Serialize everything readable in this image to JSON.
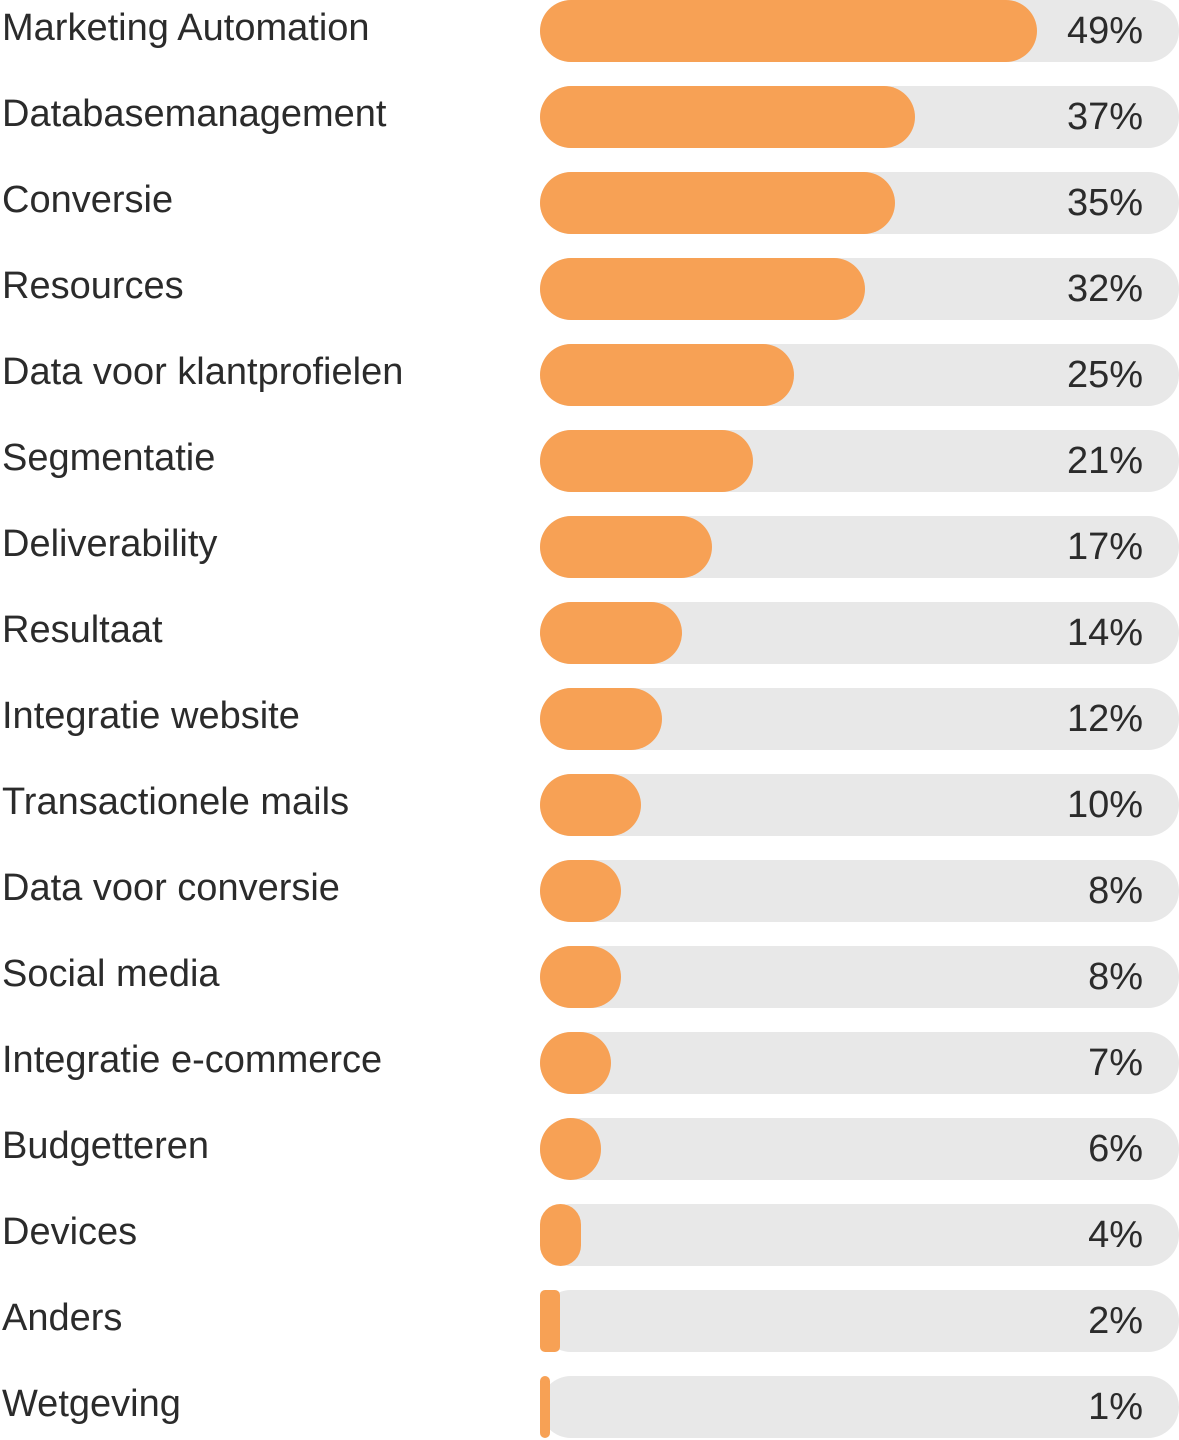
{
  "chart_data": {
    "type": "bar",
    "orientation": "horizontal",
    "title": "",
    "xlabel": "",
    "ylabel": "",
    "xlim": [
      0,
      63
    ],
    "unit": "%",
    "colors": {
      "bar": "#f7a155",
      "track": "#e8e8e8",
      "text": "#2b2b2b"
    },
    "categories": [
      "Marketing Automation",
      "Databasemanagement",
      "Conversie",
      "Resources",
      "Data voor klantprofielen",
      "Segmentatie",
      "Deliverability",
      "Resultaat",
      "Integratie website",
      "Transactionele mails",
      "Data voor conversie",
      "Social media",
      "Integratie e-commerce",
      "Budgetteren",
      "Devices",
      "Anders",
      "Wetgeving"
    ],
    "values": [
      49,
      37,
      35,
      32,
      25,
      21,
      17,
      14,
      12,
      10,
      8,
      8,
      7,
      6,
      4,
      2,
      1
    ],
    "value_labels": [
      "49%",
      "37%",
      "35%",
      "32%",
      "25%",
      "21%",
      "17%",
      "14%",
      "12%",
      "10%",
      "8%",
      "8%",
      "7%",
      "6%",
      "4%",
      "2%",
      "1%"
    ]
  }
}
